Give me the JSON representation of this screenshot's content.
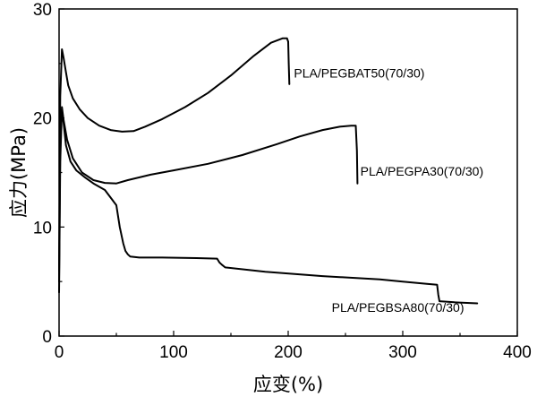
{
  "chart_data": {
    "type": "line",
    "title": "",
    "xlabel": "应变(%)",
    "ylabel": "应力(MPa)",
    "xlim": [
      0,
      400
    ],
    "ylim": [
      0,
      30
    ],
    "xticks": [
      0,
      100,
      200,
      300,
      400
    ],
    "yticks": [
      0,
      10,
      20,
      30
    ],
    "grid": false,
    "legend": "none",
    "series": [
      {
        "name": "PLA/PEGBAT50(70/30)",
        "x": [
          0,
          1,
          2.5,
          4,
          6,
          8,
          12,
          18,
          25,
          35,
          45,
          55,
          65,
          75,
          90,
          110,
          130,
          150,
          170,
          185,
          195,
          199,
          200,
          200.5,
          201
        ],
        "y": [
          6,
          22,
          26.3,
          25.5,
          24.2,
          23.0,
          21.8,
          20.8,
          20.0,
          19.3,
          18.9,
          18.75,
          18.8,
          19.2,
          19.9,
          21.0,
          22.3,
          23.9,
          25.7,
          26.9,
          27.3,
          27.3,
          27.0,
          25.0,
          23.1
        ]
      },
      {
        "name": "PLA/PEGPA30(70/30)",
        "x": [
          0,
          1,
          2.5,
          4,
          7,
          12,
          20,
          30,
          40,
          50,
          60,
          80,
          100,
          130,
          160,
          190,
          210,
          230,
          245,
          255,
          259,
          260,
          260.5
        ],
        "y": [
          5,
          17.5,
          21,
          19.8,
          18.0,
          16.3,
          15.0,
          14.3,
          14.05,
          14.0,
          14.3,
          14.8,
          15.2,
          15.8,
          16.6,
          17.6,
          18.3,
          18.9,
          19.2,
          19.3,
          19.3,
          17.0,
          14.0
        ]
      },
      {
        "name": "PLA/PEGBSA80(70/30)",
        "x": [
          0,
          1,
          2.5,
          4,
          6,
          10,
          15,
          22,
          30,
          40,
          50,
          53,
          56,
          58,
          60,
          62,
          70,
          90,
          120,
          138,
          140,
          142,
          145,
          180,
          230,
          280,
          300,
          320,
          330,
          331,
          332,
          345,
          365
        ],
        "y": [
          4,
          16,
          20.8,
          19.5,
          17.5,
          16.0,
          15.2,
          14.6,
          14.0,
          13.4,
          12.0,
          10.0,
          8.5,
          7.8,
          7.5,
          7.3,
          7.2,
          7.2,
          7.15,
          7.1,
          6.75,
          6.55,
          6.3,
          5.9,
          5.5,
          5.2,
          5.0,
          4.8,
          4.7,
          3.8,
          3.2,
          3.1,
          3.0
        ]
      }
    ],
    "annotations": [
      {
        "text": "PLA/PEGBAT50(70/30)",
        "x": 205,
        "y": 23.7
      },
      {
        "text": "PLA/PEGPA30(70/30)",
        "x": 263,
        "y": 14.7
      },
      {
        "text": "PLA/PEGBSA80(70/30)",
        "x": 238,
        "y": 2.2
      }
    ]
  }
}
